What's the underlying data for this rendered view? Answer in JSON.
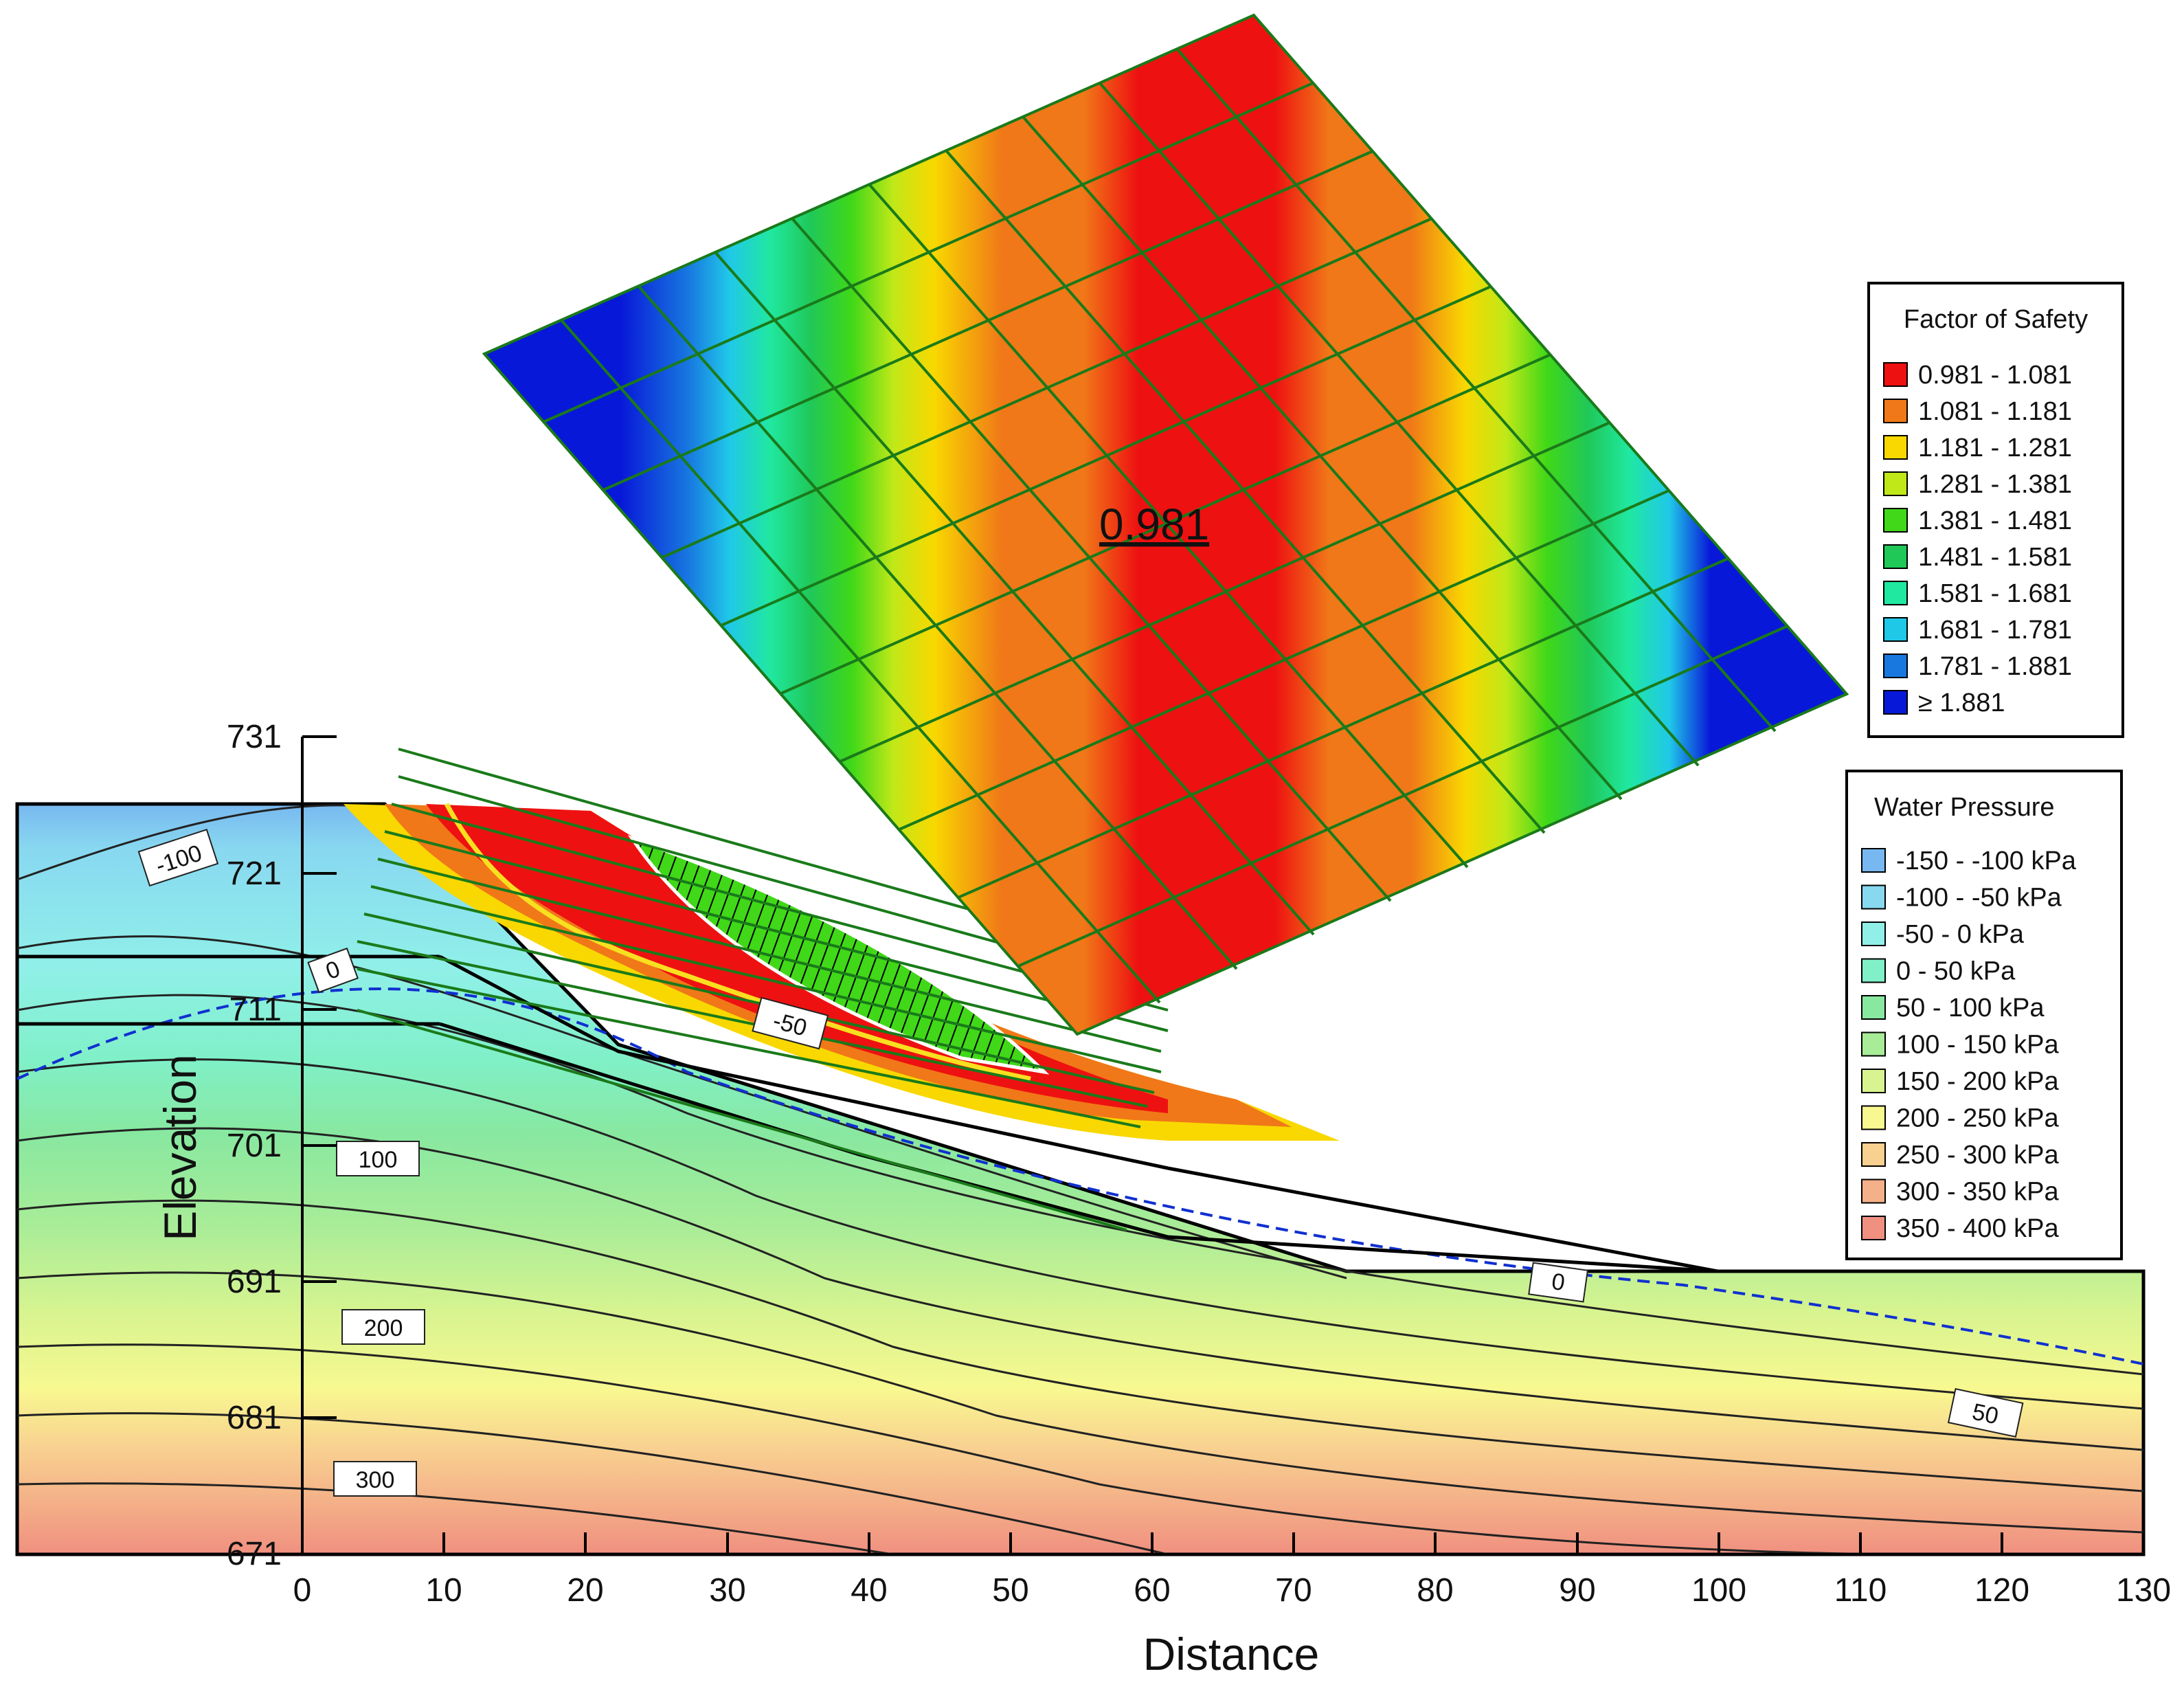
{
  "chart_data": {
    "type": "contour",
    "xlabel": "Distance",
    "ylabel": "Elevation",
    "xlim": [
      0,
      130
    ],
    "ylim": [
      671,
      731
    ],
    "x_ticks": [
      "0",
      "10",
      "20",
      "30",
      "40",
      "50",
      "60",
      "70",
      "80",
      "90",
      "100",
      "110",
      "120",
      "130"
    ],
    "y_ticks": [
      "731",
      "721",
      "711",
      "701",
      "691",
      "681",
      "671"
    ],
    "min_factor_of_safety": "0.981",
    "factor_of_safety_legend": {
      "title": "Factor of Safety",
      "entries": [
        {
          "label": "0.981 - 1.081",
          "color": "#ee1111"
        },
        {
          "label": "1.081 - 1.181",
          "color": "#f07818"
        },
        {
          "label": "1.181 - 1.281",
          "color": "#f8d800"
        },
        {
          "label": "1.281 - 1.381",
          "color": "#c0e818"
        },
        {
          "label": "1.381 - 1.481",
          "color": "#40d818"
        },
        {
          "label": "1.481 - 1.581",
          "color": "#20c858"
        },
        {
          "label": "1.581 - 1.681",
          "color": "#20e8a0"
        },
        {
          "label": "1.681 - 1.781",
          "color": "#20c8e8"
        },
        {
          "label": "1.781 - 1.881",
          "color": "#1878e0"
        },
        {
          "label": "≥ 1.881",
          "color": "#0818d8"
        }
      ]
    },
    "water_pressure_legend": {
      "title": "Water Pressure",
      "entries": [
        {
          "label": "-150 - -100 kPa",
          "color": "#78b8f0"
        },
        {
          "label": "-100 - -50 kPa",
          "color": "#88d8f0"
        },
        {
          "label": "-50 - 0 kPa",
          "color": "#90f0e8"
        },
        {
          "label": "0 - 50 kPa",
          "color": "#80f0c8"
        },
        {
          "label": "50 - 100 kPa",
          "color": "#88e8a0"
        },
        {
          "label": "100 - 150 kPa",
          "color": "#a8ec98"
        },
        {
          "label": "150 - 200 kPa",
          "color": "#d8f490"
        },
        {
          "label": "200 - 250 kPa",
          "color": "#f8f890"
        },
        {
          "label": "250 - 300 kPa",
          "color": "#f8d090"
        },
        {
          "label": "300 - 350 kPa",
          "color": "#f4b088"
        },
        {
          "label": "350 - 400 kPa",
          "color": "#f09080"
        }
      ]
    },
    "contour_labels": [
      "-100",
      "0",
      "-50",
      "100",
      "200",
      "300",
      "0",
      "50"
    ]
  }
}
